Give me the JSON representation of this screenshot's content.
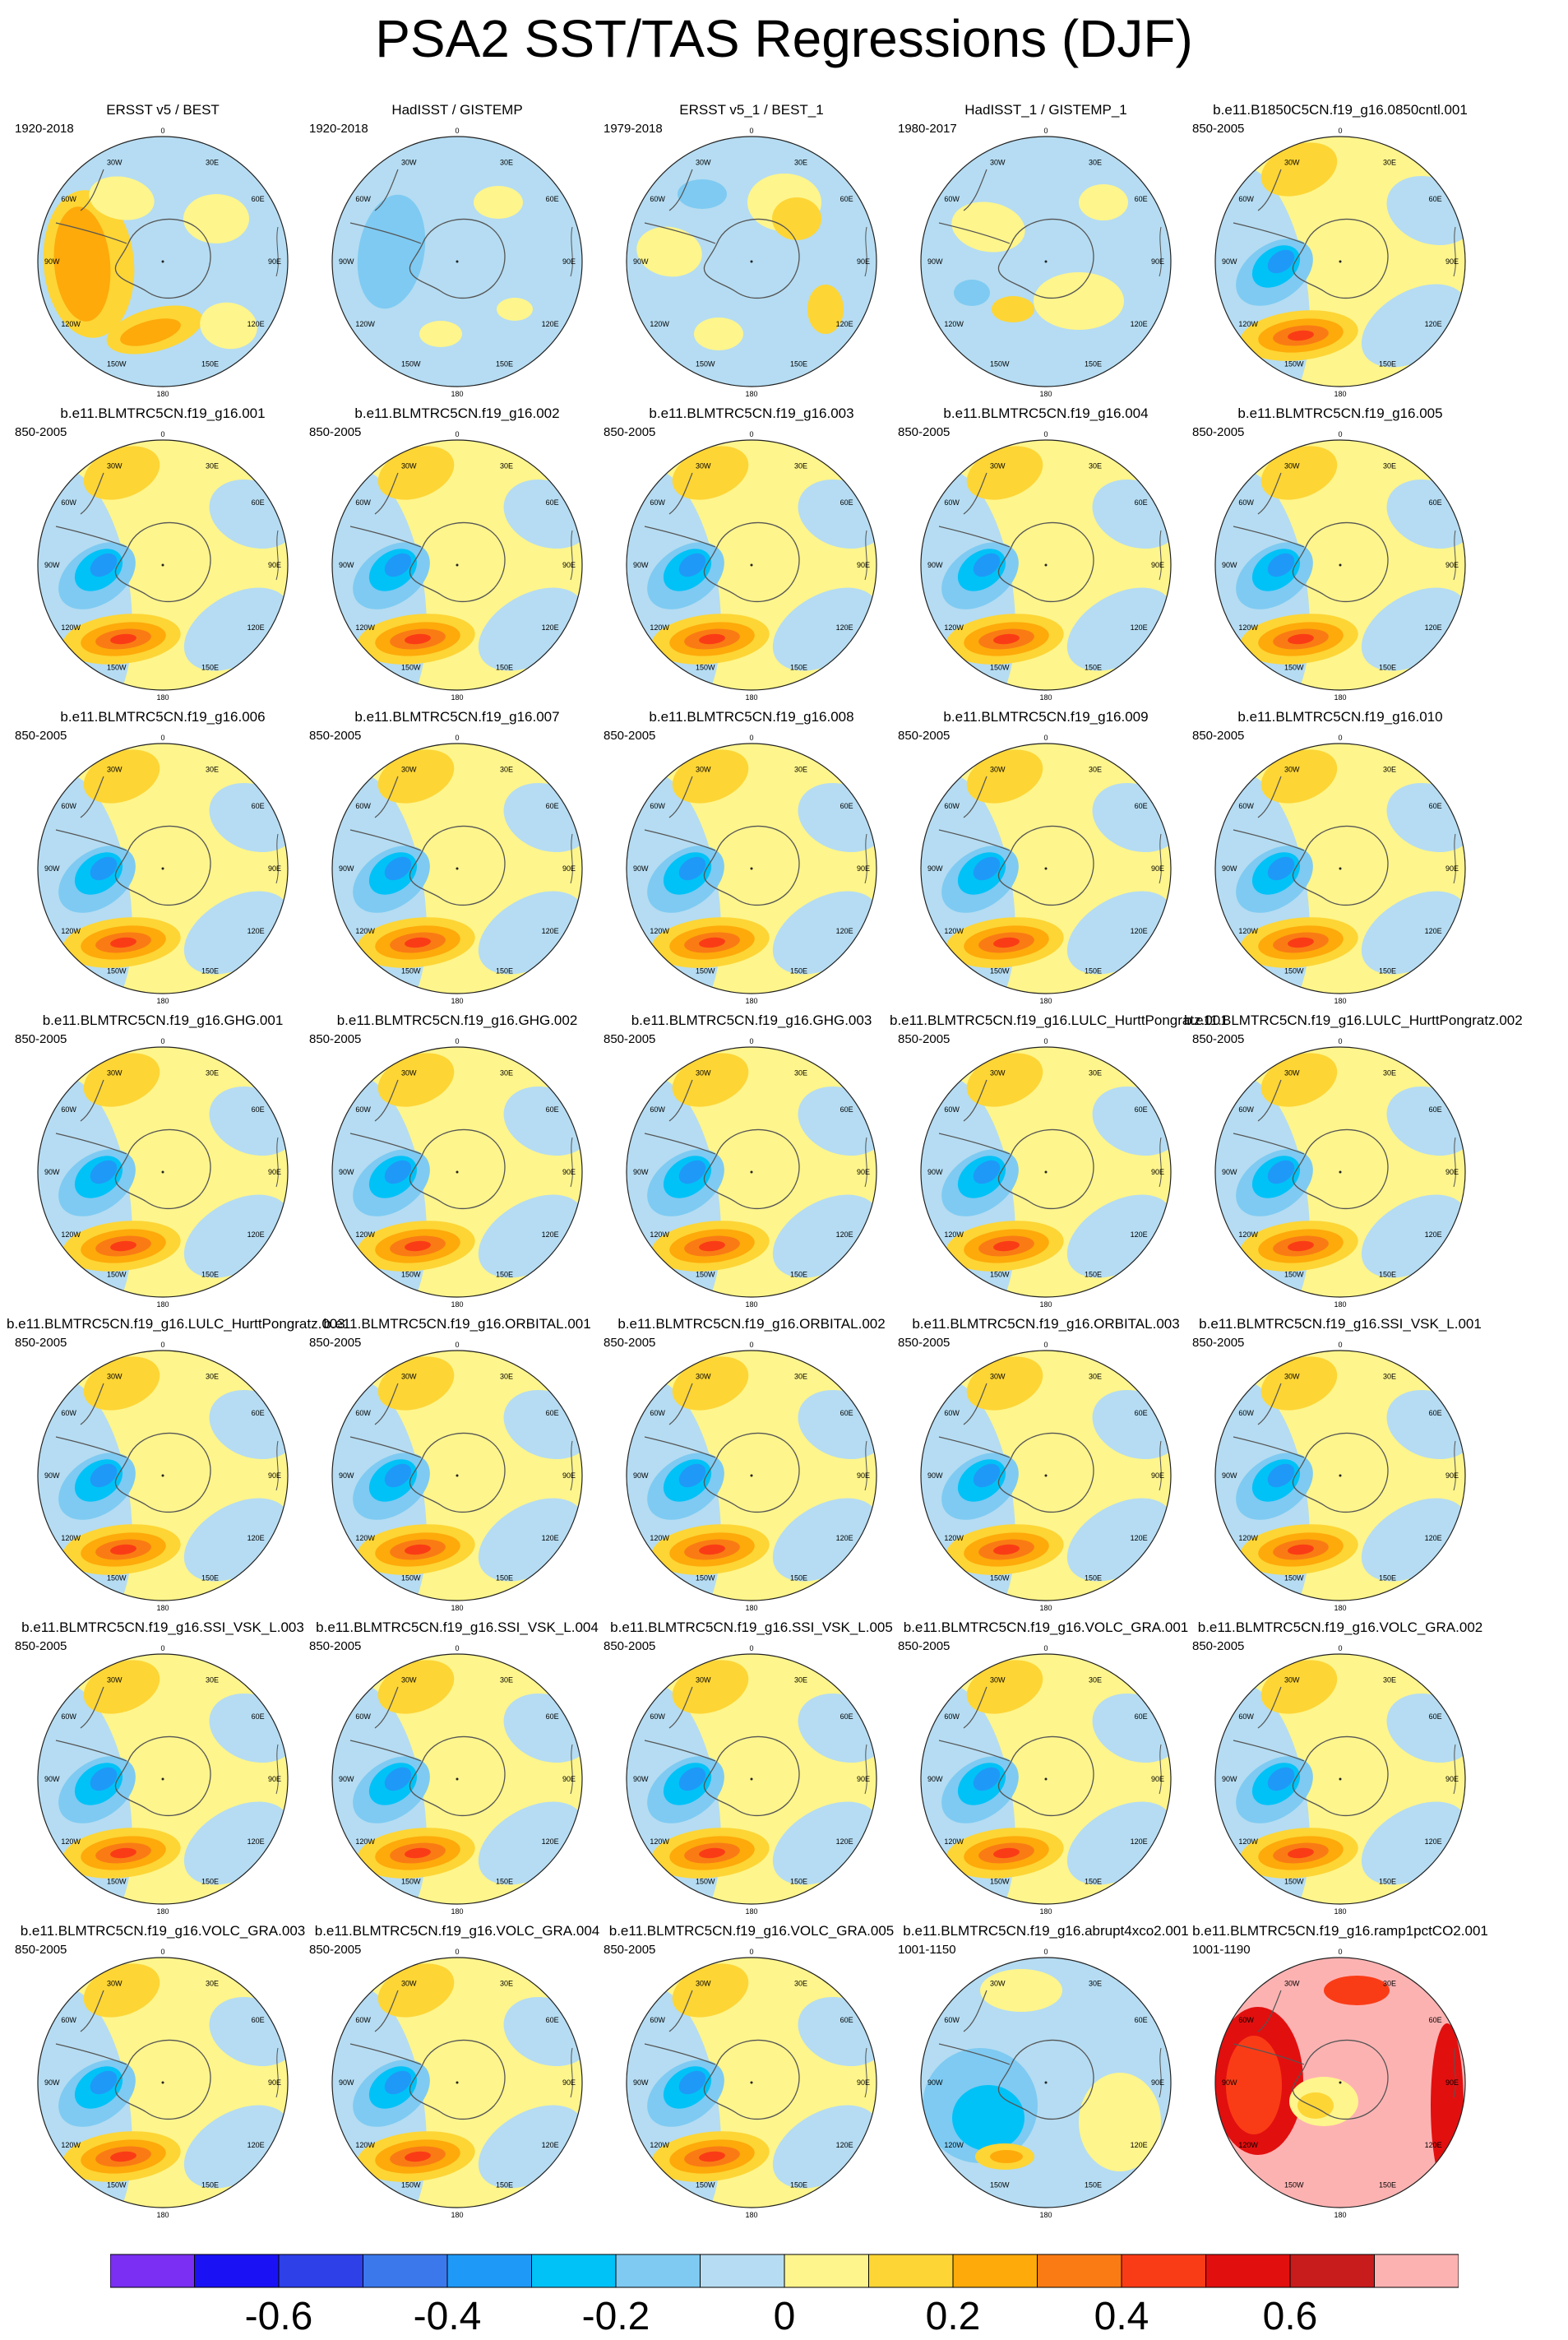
{
  "title": "PSA2 SST/TAS Regressions (DJF)",
  "meridian_labels": [
    "0",
    "30E",
    "60E",
    "90E",
    "120E",
    "150E",
    "180",
    "150W",
    "120W",
    "90W",
    "60W",
    "30W"
  ],
  "panels": [
    {
      "title": "ERSST v5 / BEST",
      "period": "1920-2018",
      "style": "obs1"
    },
    {
      "title": "HadISST / GISTEMP",
      "period": "1920-2018",
      "style": "obs2"
    },
    {
      "title": "ERSST v5_1 / BEST_1",
      "period": "1979-2018",
      "style": "obs3"
    },
    {
      "title": "HadISST_1 / GISTEMP_1",
      "period": "1980-2017",
      "style": "obs4"
    },
    {
      "title": "b.e11.B1850C5CN.f19_g16.0850cntl.001",
      "period": "850-2005",
      "style": "model"
    },
    {
      "title": "b.e11.BLMTRC5CN.f19_g16.001",
      "period": "850-2005",
      "style": "model"
    },
    {
      "title": "b.e11.BLMTRC5CN.f19_g16.002",
      "period": "850-2005",
      "style": "model"
    },
    {
      "title": "b.e11.BLMTRC5CN.f19_g16.003",
      "period": "850-2005",
      "style": "model"
    },
    {
      "title": "b.e11.BLMTRC5CN.f19_g16.004",
      "period": "850-2005",
      "style": "model"
    },
    {
      "title": "b.e11.BLMTRC5CN.f19_g16.005",
      "period": "850-2005",
      "style": "model"
    },
    {
      "title": "b.e11.BLMTRC5CN.f19_g16.006",
      "period": "850-2005",
      "style": "model"
    },
    {
      "title": "b.e11.BLMTRC5CN.f19_g16.007",
      "period": "850-2005",
      "style": "model"
    },
    {
      "title": "b.e11.BLMTRC5CN.f19_g16.008",
      "period": "850-2005",
      "style": "model"
    },
    {
      "title": "b.e11.BLMTRC5CN.f19_g16.009",
      "period": "850-2005",
      "style": "model"
    },
    {
      "title": "b.e11.BLMTRC5CN.f19_g16.010",
      "period": "850-2005",
      "style": "model"
    },
    {
      "title": "b.e11.BLMTRC5CN.f19_g16.GHG.001",
      "period": "850-2005",
      "style": "model"
    },
    {
      "title": "b.e11.BLMTRC5CN.f19_g16.GHG.002",
      "period": "850-2005",
      "style": "model"
    },
    {
      "title": "b.e11.BLMTRC5CN.f19_g16.GHG.003",
      "period": "850-2005",
      "style": "model"
    },
    {
      "title": "b.e11.BLMTRC5CN.f19_g16.LULC_HurttPongratz.001",
      "period": "850-2005",
      "style": "model"
    },
    {
      "title": "b.e11.BLMTRC5CN.f19_g16.LULC_HurttPongratz.002",
      "period": "850-2005",
      "style": "model"
    },
    {
      "title": "b.e11.BLMTRC5CN.f19_g16.LULC_HurttPongratz.003",
      "period": "850-2005",
      "style": "model"
    },
    {
      "title": "b.e11.BLMTRC5CN.f19_g16.ORBITAL.001",
      "period": "850-2005",
      "style": "model"
    },
    {
      "title": "b.e11.BLMTRC5CN.f19_g16.ORBITAL.002",
      "period": "850-2005",
      "style": "model"
    },
    {
      "title": "b.e11.BLMTRC5CN.f19_g16.ORBITAL.003",
      "period": "850-2005",
      "style": "model"
    },
    {
      "title": "b.e11.BLMTRC5CN.f19_g16.SSI_VSK_L.001",
      "period": "850-2005",
      "style": "model"
    },
    {
      "title": "b.e11.BLMTRC5CN.f19_g16.SSI_VSK_L.003",
      "period": "850-2005",
      "style": "model"
    },
    {
      "title": "b.e11.BLMTRC5CN.f19_g16.SSI_VSK_L.004",
      "period": "850-2005",
      "style": "model"
    },
    {
      "title": "b.e11.BLMTRC5CN.f19_g16.SSI_VSK_L.005",
      "period": "850-2005",
      "style": "model"
    },
    {
      "title": "b.e11.BLMTRC5CN.f19_g16.VOLC_GRA.001",
      "period": "850-2005",
      "style": "model"
    },
    {
      "title": "b.e11.BLMTRC5CN.f19_g16.VOLC_GRA.002",
      "period": "850-2005",
      "style": "model"
    },
    {
      "title": "b.e11.BLMTRC5CN.f19_g16.VOLC_GRA.003",
      "period": "850-2005",
      "style": "model"
    },
    {
      "title": "b.e11.BLMTRC5CN.f19_g16.VOLC_GRA.004",
      "period": "850-2005",
      "style": "model"
    },
    {
      "title": "b.e11.BLMTRC5CN.f19_g16.VOLC_GRA.005",
      "period": "850-2005",
      "style": "model"
    },
    {
      "title": "b.e11.BLMTRC5CN.f19_g16.abrupt4xco2.001",
      "period": "1001-1150",
      "style": "abrupt"
    },
    {
      "title": "b.e11.BLMTRC5CN.f19_g16.ramp1pctCO2.001",
      "period": "1001-1190",
      "style": "ramp"
    }
  ],
  "colorbar": {
    "colors": [
      "#7a2ff2",
      "#1a12f5",
      "#2e40e8",
      "#3b78ec",
      "#1f99f7",
      "#00c2f7",
      "#7ecaf2",
      "#b5dcf2",
      "#fef58c",
      "#fdd535",
      "#fdaa0a",
      "#fa7b14",
      "#fa3c16",
      "#e20f0f",
      "#c81c1c",
      "#fdb2b2"
    ],
    "labels": [
      "-0.6",
      "-0.4",
      "-0.2",
      "0",
      "0.2",
      "0.4",
      "0.6"
    ]
  }
}
